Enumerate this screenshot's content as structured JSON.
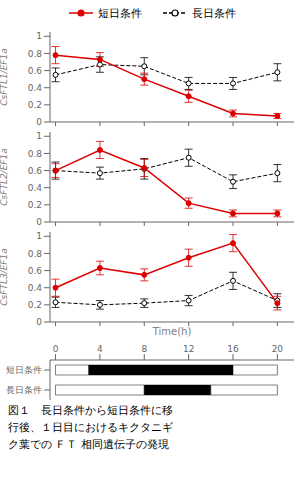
{
  "chart_data": [
    {
      "type": "line",
      "legend": "top",
      "tick_labels": "y",
      "y_label": "CsFTL1/EF1a",
      "x": [
        0,
        4,
        8,
        12,
        16,
        20
      ],
      "xlim": [
        -0.5,
        21.5
      ],
      "xticks": [
        0,
        4,
        8,
        12,
        16,
        20
      ],
      "ylim": [
        0,
        1.05
      ],
      "yticks": [
        0,
        0.2,
        0.4,
        0.6,
        0.8,
        1
      ],
      "series": [
        {
          "name": "短日条件",
          "color": "#dd0000",
          "line_style": "solid",
          "marker": "filled_circle",
          "values": [
            0.78,
            0.73,
            0.5,
            0.3,
            0.1,
            0.07
          ],
          "errors": [
            0.1,
            0.08,
            0.07,
            0.07,
            0.04,
            0.03
          ]
        },
        {
          "name": "長日条件",
          "color": "#000000",
          "line_style": "dashed",
          "marker": "open_circle",
          "values": [
            0.55,
            0.67,
            0.65,
            0.45,
            0.45,
            0.58
          ],
          "errors": [
            0.08,
            0.09,
            0.1,
            0.07,
            0.07,
            0.1
          ]
        }
      ]
    },
    {
      "type": "line",
      "tick_labels": "y",
      "y_label": "CsFTL2/EF1a",
      "x": [
        0,
        4,
        8,
        12,
        16,
        20
      ],
      "xlim": [
        -0.5,
        21.5
      ],
      "xticks": [
        0,
        4,
        8,
        12,
        16,
        20
      ],
      "ylim": [
        0,
        1.05
      ],
      "yticks": [
        0,
        0.2,
        0.4,
        0.6,
        0.8,
        1
      ],
      "series": [
        {
          "name": "短日条件",
          "color": "#dd0000",
          "line_style": "solid",
          "marker": "filled_circle",
          "values": [
            0.6,
            0.84,
            0.63,
            0.22,
            0.1,
            0.1
          ],
          "errors": [
            0.08,
            0.1,
            0.1,
            0.06,
            0.04,
            0.04
          ]
        },
        {
          "name": "長日条件",
          "color": "#000000",
          "line_style": "dashed",
          "marker": "open_circle",
          "values": [
            0.6,
            0.57,
            0.62,
            0.75,
            0.47,
            0.57
          ],
          "errors": [
            0.1,
            0.07,
            0.12,
            0.1,
            0.08,
            0.1
          ]
        }
      ]
    },
    {
      "type": "line",
      "tick_labels": "y",
      "y_label": "CsFTL3/EF1a",
      "x": [
        0,
        4,
        8,
        12,
        16,
        20
      ],
      "xlim": [
        -0.5,
        21.5
      ],
      "xticks": [
        0,
        4,
        8,
        12,
        16,
        20
      ],
      "ylim": [
        0,
        1.05
      ],
      "yticks": [
        0,
        0.2,
        0.4,
        0.6,
        0.8,
        1
      ],
      "series": [
        {
          "name": "短日条件",
          "color": "#dd0000",
          "line_style": "solid",
          "marker": "filled_circle",
          "values": [
            0.4,
            0.63,
            0.55,
            0.75,
            0.92,
            0.22
          ],
          "errors": [
            0.1,
            0.08,
            0.07,
            0.1,
            0.1,
            0.08
          ]
        },
        {
          "name": "長日条件",
          "color": "#000000",
          "line_style": "dashed",
          "marker": "open_circle",
          "values": [
            0.23,
            0.2,
            0.22,
            0.25,
            0.48,
            0.25
          ],
          "errors": [
            0.06,
            0.05,
            0.05,
            0.06,
            0.1,
            0.08
          ]
        }
      ]
    },
    {
      "type": "bar",
      "orientation": "horizontal",
      "stacked": true,
      "x_label": "Time(h)",
      "xlim": [
        -0.5,
        21.5
      ],
      "xticks": [
        0,
        4,
        8,
        12,
        16,
        20
      ],
      "categories": [
        "短日条件",
        "長日条件"
      ],
      "series": [
        {
          "color": "white",
          "values": [
            3,
            8
          ]
        },
        {
          "color": "black",
          "values": [
            13,
            6
          ]
        },
        {
          "color": "white",
          "values": [
            4,
            6
          ]
        }
      ],
      "annotations": [
        "図１　長日条件から短日条件に移",
        "行後、１日目におけるキクタニギ",
        "ク葉での ＦＴ 相同遺伝子の発現"
      ]
    }
  ]
}
